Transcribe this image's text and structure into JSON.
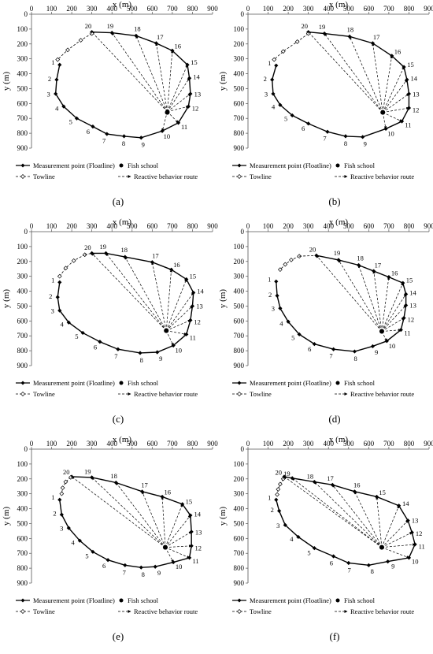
{
  "figure": {
    "x_axis_title": "x (m)",
    "y_axis_title": "y (m)",
    "x_ticks": [
      "0",
      "100",
      "200",
      "300",
      "400",
      "500",
      "600",
      "700",
      "800",
      "900"
    ],
    "y_ticks": [
      "0",
      "100",
      "200",
      "300",
      "400",
      "500",
      "600",
      "700",
      "800",
      "900"
    ],
    "legend": {
      "measurement": "Measurement point (Floatline)",
      "fish": "Fish school",
      "towline": "Towline",
      "reactive": "Reactive behavior route"
    },
    "colors": {
      "ink": "#000000",
      "background": "#ffffff"
    }
  },
  "chart_data": [
    {
      "type": "scatter",
      "panel_label": "(a)",
      "xlabel": "x (m)",
      "ylabel": "y (m)",
      "xlim": [
        0,
        900
      ],
      "ylim": [
        900,
        0
      ],
      "grid": false,
      "legend_position": "bottom",
      "series": [
        {
          "name": "Measurement point (Floatline)",
          "x": [
            140,
            125,
            120,
            160,
            225,
            305,
            375,
            460,
            545,
            650,
            730,
            780,
            790,
            785,
            775,
            700,
            620,
            520,
            400,
            300
          ],
          "y": [
            340,
            440,
            535,
            620,
            700,
            755,
            805,
            820,
            830,
            785,
            730,
            620,
            535,
            430,
            340,
            245,
            195,
            145,
            125,
            120
          ]
        },
        {
          "name": "Fish school",
          "x": [
            675
          ],
          "y": [
            660
          ]
        },
        {
          "name": "Towline",
          "x": [
            300,
            245,
            180,
            130
          ],
          "y": [
            130,
            175,
            240,
            305
          ]
        }
      ],
      "reactive_route_start": {
        "x": 675,
        "y": 655
      }
    },
    {
      "type": "scatter",
      "panel_label": "(b)",
      "xlabel": "x (m)",
      "ylabel": "y (m)",
      "xlim": [
        0,
        900
      ],
      "ylim": [
        900,
        0
      ],
      "grid": false,
      "legend_position": "bottom",
      "series": [
        {
          "name": "Measurement point (Floatline)",
          "x": [
            140,
            120,
            125,
            160,
            220,
            300,
            395,
            485,
            570,
            685,
            765,
            800,
            800,
            790,
            775,
            715,
            620,
            505,
            380,
            300
          ],
          "y": [
            345,
            440,
            535,
            610,
            680,
            735,
            790,
            820,
            825,
            770,
            720,
            630,
            535,
            440,
            355,
            280,
            195,
            150,
            130,
            120
          ]
        },
        {
          "name": "Fish school",
          "x": [
            670
          ],
          "y": [
            660
          ]
        },
        {
          "name": "Towline",
          "x": [
            300,
            245,
            175,
            130
          ],
          "y": [
            130,
            185,
            250,
            305
          ]
        }
      ],
      "reactive_route_start": {
        "x": 670,
        "y": 660
      }
    },
    {
      "type": "scatter",
      "panel_label": "(c)",
      "xlabel": "x (m)",
      "ylabel": "y (m)",
      "xlim": [
        0,
        900
      ],
      "ylim": [
        900,
        0
      ],
      "grid": false,
      "legend_position": "bottom",
      "series": [
        {
          "name": "Measurement point (Floatline)",
          "x": [
            140,
            130,
            140,
            185,
            255,
            340,
            430,
            540,
            625,
            705,
            770,
            790,
            800,
            805,
            770,
            695,
            600,
            465,
            370,
            300
          ],
          "y": [
            340,
            440,
            530,
            610,
            680,
            740,
            790,
            815,
            810,
            765,
            690,
            595,
            500,
            410,
            320,
            255,
            205,
            170,
            145,
            145
          ]
        },
        {
          "name": "Fish school",
          "x": [
            670
          ],
          "y": [
            665
          ]
        },
        {
          "name": "Towline",
          "x": [
            265,
            210,
            170,
            140
          ],
          "y": [
            155,
            195,
            245,
            300
          ]
        }
      ],
      "reactive_route_start": {
        "x": 670,
        "y": 665
      }
    },
    {
      "type": "scatter",
      "panel_label": "(d)",
      "xlabel": "x (m)",
      "ylabel": "y (m)",
      "xlim": [
        0,
        900
      ],
      "ylim": [
        900,
        0
      ],
      "grid": false,
      "legend_position": "bottom",
      "series": [
        {
          "name": "Measurement point (Floatline)",
          "x": [
            140,
            145,
            160,
            200,
            255,
            330,
            425,
            530,
            620,
            690,
            760,
            775,
            785,
            785,
            770,
            700,
            625,
            550,
            450,
            340
          ],
          "y": [
            335,
            430,
            515,
            605,
            690,
            755,
            790,
            805,
            770,
            735,
            660,
            580,
            495,
            420,
            345,
            305,
            265,
            225,
            190,
            160
          ]
        },
        {
          "name": "Fish school",
          "x": [
            665
          ],
          "y": [
            670
          ]
        },
        {
          "name": "Towline",
          "x": [
            255,
            215,
            185,
            160
          ],
          "y": [
            165,
            190,
            220,
            255
          ]
        }
      ],
      "reactive_route_start": {
        "x": 665,
        "y": 670
      }
    },
    {
      "type": "scatter",
      "panel_label": "(e)",
      "xlabel": "x (m)",
      "ylabel": "y (m)",
      "xlim": [
        0,
        900
      ],
      "ylim": [
        900,
        0
      ],
      "grid": false,
      "legend_position": "bottom",
      "series": [
        {
          "name": "Measurement point (Floatline)",
          "x": [
            140,
            150,
            185,
            240,
            305,
            380,
            465,
            545,
            615,
            705,
            785,
            795,
            795,
            790,
            750,
            650,
            550,
            420,
            300,
            200
          ],
          "y": [
            340,
            440,
            530,
            615,
            690,
            745,
            780,
            795,
            790,
            760,
            730,
            650,
            555,
            445,
            370,
            320,
            285,
            225,
            190,
            185
          ]
        },
        {
          "name": "Fish school",
          "x": [
            665
          ],
          "y": [
            660
          ]
        },
        {
          "name": "Towline",
          "x": [
            195,
            170,
            155,
            150
          ],
          "y": [
            190,
            220,
            260,
            300
          ]
        }
      ],
      "reactive_route_start": {
        "x": 665,
        "y": 660
      }
    },
    {
      "type": "scatter",
      "panel_label": "(f)",
      "xlabel": "x (m)",
      "ylabel": "y (m)",
      "xlim": [
        0,
        900
      ],
      "ylim": [
        900,
        0
      ],
      "grid": false,
      "legend_position": "bottom",
      "series": [
        {
          "name": "Measurement point (Floatline)",
          "x": [
            140,
            155,
            185,
            250,
            330,
            425,
            500,
            600,
            695,
            800,
            830,
            815,
            795,
            750,
            640,
            530,
            420,
            330,
            220,
            180
          ],
          "y": [
            340,
            415,
            510,
            590,
            665,
            720,
            765,
            780,
            755,
            730,
            640,
            560,
            480,
            380,
            320,
            285,
            240,
            220,
            195,
            185
          ]
        },
        {
          "name": "Fish school",
          "x": [
            665
          ],
          "y": [
            660
          ]
        },
        {
          "name": "Towline",
          "x": [
            175,
            160,
            150,
            145
          ],
          "y": [
            200,
            235,
            270,
            305
          ]
        }
      ],
      "reactive_route_start": {
        "x": 665,
        "y": 660
      }
    }
  ]
}
